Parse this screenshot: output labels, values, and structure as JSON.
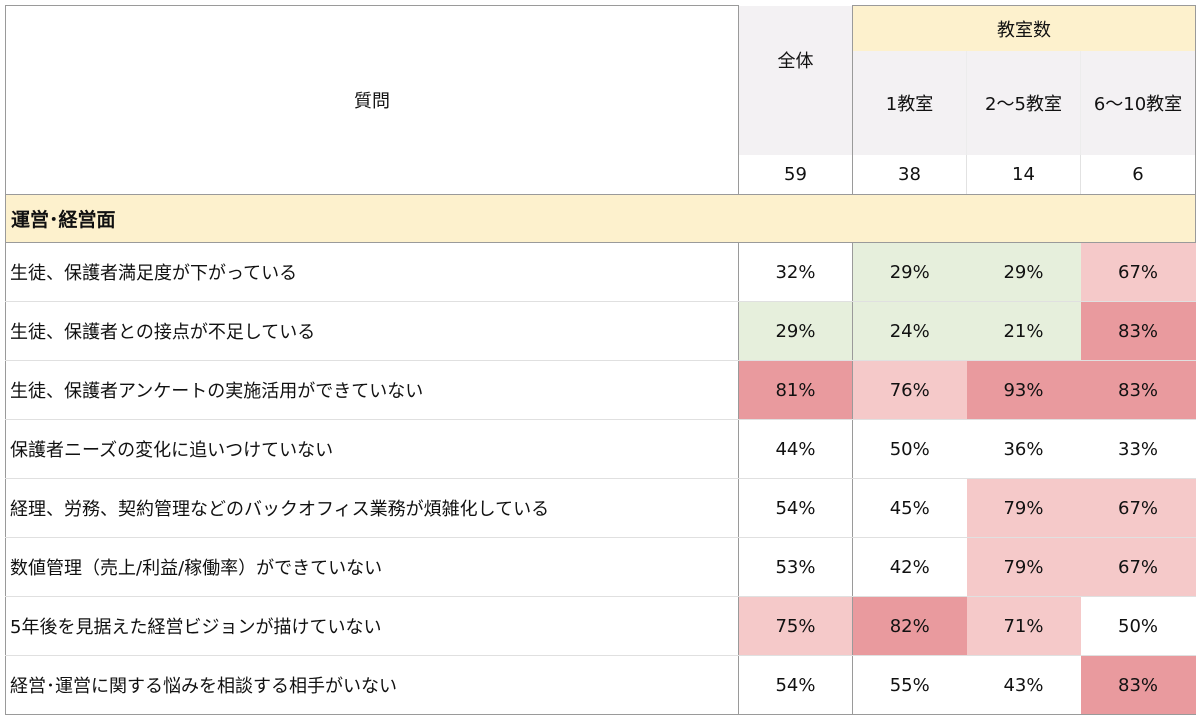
{
  "chart_data": {
    "type": "table",
    "header": {
      "question_label": "質問",
      "total_label": "全体",
      "group_label": "教室数",
      "columns": [
        "1教室",
        "2〜5教室",
        "6〜10教室"
      ],
      "counts": [
        "59",
        "38",
        "14",
        "6"
      ]
    },
    "section": "運営･経営面",
    "rows": [
      {
        "question": "生徒、保護者満足度が下がっている",
        "values": [
          "32%",
          "29%",
          "29%",
          "67%"
        ],
        "colors": [
          "#ffffff",
          "#e6efdc",
          "#e6efdc",
          "#f5c9c9"
        ]
      },
      {
        "question": "生徒、保護者との接点が不足している",
        "values": [
          "29%",
          "24%",
          "21%",
          "83%"
        ],
        "colors": [
          "#e6efdc",
          "#e6efdc",
          "#e6efdc",
          "#e99a9e"
        ]
      },
      {
        "question": "生徒、保護者アンケートの実施活用ができていない",
        "values": [
          "81%",
          "76%",
          "93%",
          "83%"
        ],
        "colors": [
          "#e99a9e",
          "#f5c9c9",
          "#e99a9e",
          "#e99a9e"
        ]
      },
      {
        "question": "保護者ニーズの変化に追いつけていない",
        "values": [
          "44%",
          "50%",
          "36%",
          "33%"
        ],
        "colors": [
          "#ffffff",
          "#ffffff",
          "#ffffff",
          "#ffffff"
        ]
      },
      {
        "question": "経理、労務、契約管理などのバックオフィス業務が煩雑化している",
        "values": [
          "54%",
          "45%",
          "79%",
          "67%"
        ],
        "colors": [
          "#ffffff",
          "#ffffff",
          "#f5c9c9",
          "#f5c9c9"
        ]
      },
      {
        "question": "数値管理（売上/利益/稼働率）ができていない",
        "values": [
          "53%",
          "42%",
          "79%",
          "67%"
        ],
        "colors": [
          "#ffffff",
          "#ffffff",
          "#f5c9c9",
          "#f5c9c9"
        ]
      },
      {
        "question": "5年後を見据えた経営ビジョンが描けていない",
        "values": [
          "75%",
          "82%",
          "71%",
          "50%"
        ],
        "colors": [
          "#f5c9c9",
          "#e99a9e",
          "#f5c9c9",
          "#ffffff"
        ]
      },
      {
        "question": "経営･運営に関する悩みを相談する相手がいない",
        "values": [
          "54%",
          "55%",
          "43%",
          "83%"
        ],
        "colors": [
          "#ffffff",
          "#ffffff",
          "#ffffff",
          "#e99a9e"
        ]
      }
    ]
  }
}
